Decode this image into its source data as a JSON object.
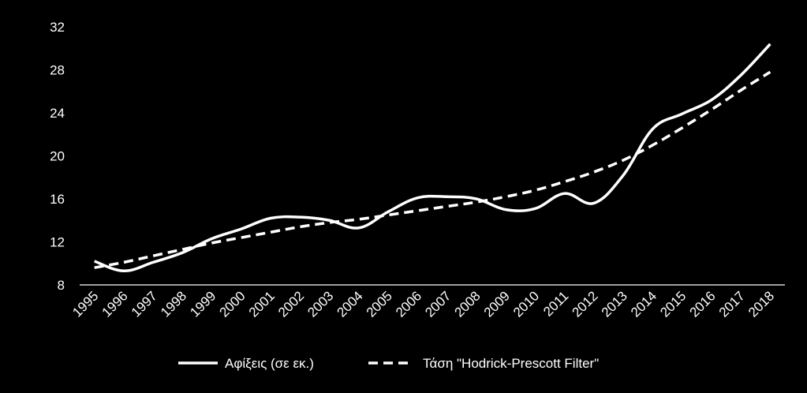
{
  "chart_data": {
    "type": "line",
    "categories": [
      "1995",
      "1996",
      "1997",
      "1998",
      "1999",
      "2000",
      "2001",
      "2002",
      "2003",
      "2004",
      "2005",
      "2006",
      "2007",
      "2008",
      "2009",
      "2010",
      "2011",
      "2012",
      "2013",
      "2014",
      "2015",
      "2016",
      "2017",
      "2018"
    ],
    "series": [
      {
        "name": "Αφίξεις (σε εκ.)",
        "style": "solid",
        "color": "#ffffff",
        "values": [
          10.2,
          9.3,
          10.1,
          11.0,
          12.3,
          13.2,
          14.2,
          14.3,
          14.0,
          13.3,
          14.8,
          16.1,
          16.2,
          16.0,
          15.0,
          15.1,
          16.5,
          15.6,
          18.2,
          22.5,
          23.9,
          25.2,
          27.5,
          30.4
        ]
      },
      {
        "name": "Τάση \"Hodrick-Prescott Filter\"",
        "style": "dashed",
        "color": "#ffffff",
        "values": [
          9.6,
          10.1,
          10.7,
          11.3,
          11.9,
          12.4,
          12.9,
          13.4,
          13.8,
          14.1,
          14.5,
          14.9,
          15.3,
          15.7,
          16.2,
          16.8,
          17.6,
          18.5,
          19.6,
          21.0,
          22.6,
          24.3,
          26.1,
          27.8
        ]
      }
    ],
    "y_ticks": [
      "8",
      "12",
      "16",
      "20",
      "24",
      "28",
      "32"
    ],
    "ylim": [
      8,
      32
    ],
    "grid": false,
    "legend_position": "bottom",
    "background": "#000000"
  }
}
